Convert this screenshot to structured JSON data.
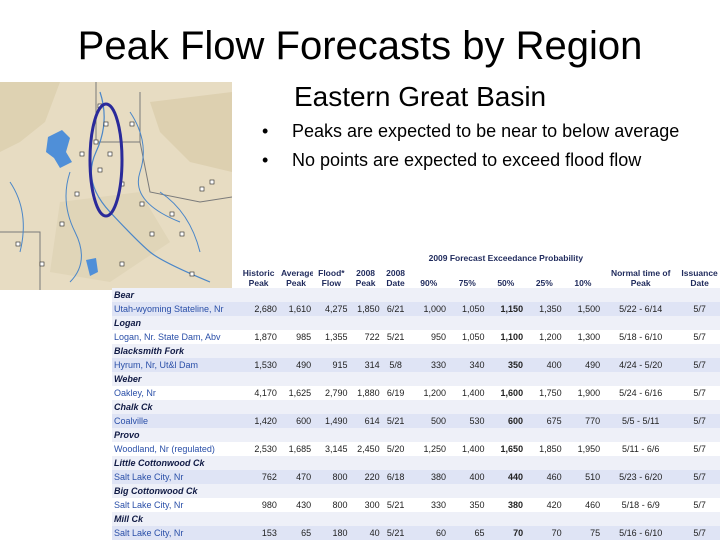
{
  "title": "Peak Flow Forecasts by Region",
  "subtitle": "Eastern Great Basin",
  "bullets": [
    "Peaks are expected to be near to below average",
    "No points are expected to exceed flood flow"
  ],
  "bullet_glyph": "•",
  "table": {
    "caption": "2009 Forecast Exceedance Probability",
    "columns": [
      "",
      "Historic Peak",
      "Average Peak",
      "Flood* Flow",
      "2008 Peak",
      "2008 Date",
      "90%",
      "75%",
      "50%",
      "25%",
      "10%",
      "Normal time of Peak",
      "Issuance Date"
    ],
    "groups": [
      {
        "name": "Bear",
        "point": "Utah-wyoming Stateline, Nr",
        "values": [
          "2,680",
          "1,610",
          "4,275",
          "1,850",
          "6/21",
          "1,000",
          "1,050",
          "1,150",
          "1,350",
          "1,500",
          "5/22 - 6/14",
          "5/7"
        ]
      },
      {
        "name": "Logan",
        "point": "Logan, Nr. State Dam, Abv",
        "values": [
          "1,870",
          "985",
          "1,355",
          "722",
          "5/21",
          "950",
          "1,050",
          "1,100",
          "1,200",
          "1,300",
          "5/18 - 6/10",
          "5/7"
        ]
      },
      {
        "name": "Blacksmith Fork",
        "point": "Hyrum, Nr, Ut&l Dam",
        "values": [
          "1,530",
          "490",
          "915",
          "314",
          "5/8",
          "330",
          "340",
          "350",
          "400",
          "490",
          "4/24 - 5/20",
          "5/7"
        ]
      },
      {
        "name": "Weber",
        "point": "Oakley, Nr",
        "values": [
          "4,170",
          "1,625",
          "2,790",
          "1,880",
          "6/19",
          "1,200",
          "1,400",
          "1,600",
          "1,750",
          "1,900",
          "5/24 - 6/16",
          "5/7"
        ]
      },
      {
        "name": "Chalk Ck",
        "point": "Coalville",
        "values": [
          "1,420",
          "600",
          "1,490",
          "614",
          "5/21",
          "500",
          "530",
          "600",
          "675",
          "770",
          "5/5 - 5/11",
          "5/7"
        ]
      },
      {
        "name": "Provo",
        "point": "Woodland, Nr (regulated)",
        "values": [
          "2,530",
          "1,685",
          "3,145",
          "2,450",
          "5/20",
          "1,250",
          "1,400",
          "1,650",
          "1,850",
          "1,950",
          "5/11 - 6/6",
          "5/7"
        ]
      },
      {
        "name": "Little Cottonwood Ck",
        "point": "Salt Lake City, Nr",
        "values": [
          "762",
          "470",
          "800",
          "220",
          "6/18",
          "380",
          "400",
          "440",
          "460",
          "510",
          "5/23 - 6/20",
          "5/7"
        ]
      },
      {
        "name": "Big Cottonwood Ck",
        "point": "Salt Lake City, Nr",
        "values": [
          "980",
          "430",
          "800",
          "300",
          "5/21",
          "330",
          "350",
          "380",
          "420",
          "460",
          "5/18 - 6/9",
          "5/7"
        ]
      },
      {
        "name": "Mill Ck",
        "point": "Salt Lake City, Nr",
        "values": [
          "153",
          "65",
          "180",
          "40",
          "5/21",
          "60",
          "65",
          "70",
          "70",
          "75",
          "5/16 - 6/10",
          "5/7"
        ]
      }
    ]
  },
  "map": {
    "colors": {
      "land": "#e7dcc2",
      "lake": "#4f8fd8",
      "river": "#4a86c8",
      "border": "#7a7a7a",
      "oval": "#2a2a9a"
    }
  }
}
